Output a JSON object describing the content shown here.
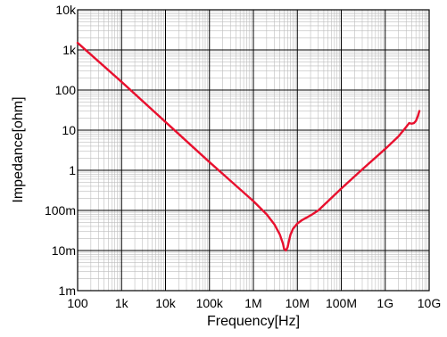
{
  "chart_data": {
    "type": "line",
    "title": "",
    "xlabel": "Frequency[Hz]",
    "ylabel": "Impedance[ohm]",
    "xscale": "log",
    "yscale": "log",
    "xlim": [
      100,
      10000000000
    ],
    "ylim": [
      0.001,
      10000
    ],
    "grid": true,
    "legend": "none",
    "x_tick_labels": [
      "100",
      "1k",
      "10k",
      "100k",
      "1M",
      "10M",
      "100M",
      "1G",
      "10G"
    ],
    "x_tick_values": [
      100,
      1000,
      10000,
      100000,
      1000000,
      10000000,
      100000000,
      1000000000,
      10000000000
    ],
    "y_tick_labels": [
      "1m",
      "10m",
      "100m",
      "1",
      "10",
      "100",
      "1k",
      "10k"
    ],
    "y_tick_values": [
      0.001,
      0.01,
      0.1,
      1,
      10,
      100,
      1000,
      10000
    ],
    "series": [
      {
        "color": "#e8102e",
        "points": [
          [
            100,
            1500
          ],
          [
            1000,
            160
          ],
          [
            10000,
            16
          ],
          [
            100000,
            1.6
          ],
          [
            1000000,
            0.17
          ],
          [
            2000000,
            0.08
          ],
          [
            3000000,
            0.045
          ],
          [
            4000000,
            0.025
          ],
          [
            4700000,
            0.015
          ],
          [
            5000000,
            0.011
          ],
          [
            5500000,
            0.01
          ],
          [
            6000000,
            0.012
          ],
          [
            6500000,
            0.018
          ],
          [
            7000000,
            0.025
          ],
          [
            8000000,
            0.035
          ],
          [
            10000000,
            0.047
          ],
          [
            13000000,
            0.058
          ],
          [
            17000000,
            0.068
          ],
          [
            22000000,
            0.08
          ],
          [
            30000000,
            0.1
          ],
          [
            50000000,
            0.17
          ],
          [
            100000000,
            0.35
          ],
          [
            300000000,
            1.05
          ],
          [
            1000000000,
            3.4
          ],
          [
            2000000000,
            7
          ],
          [
            3000000000,
            12
          ],
          [
            3500000000,
            15
          ],
          [
            4000000000,
            14.5
          ],
          [
            4500000000,
            15
          ],
          [
            5000000000,
            17
          ],
          [
            5500000000,
            22
          ],
          [
            6000000000,
            30
          ]
        ]
      }
    ]
  }
}
